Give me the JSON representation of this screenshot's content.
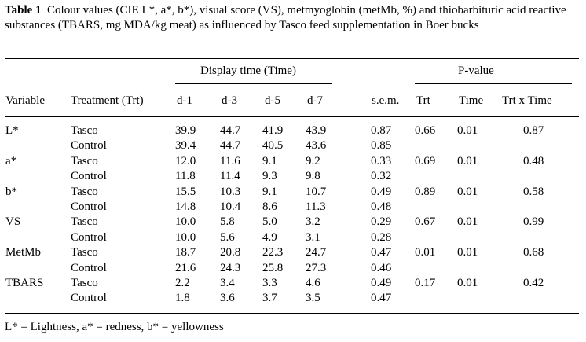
{
  "caption": {
    "label": "Table 1",
    "text": "Colour values (CIE L*, a*, b*), visual score (VS), metmyoglobin (metMb, %) and thiobarbituric acid reactive substances (TBARS, mg MDA/kg meat) as influenced by Tasco feed supplementation in Boer bucks"
  },
  "headers": {
    "display_time": "Display time (Time)",
    "p_value": "P-value",
    "variable": "Variable",
    "treatment": "Treatment (Trt)",
    "days": [
      "d-1",
      "d-3",
      "d-5",
      "d-7"
    ],
    "sem": "s.e.m.",
    "trt": "Trt",
    "time": "Time",
    "trt_x_time": "Trt x Time"
  },
  "rows": [
    {
      "variable": "L*",
      "trt": "Tasco",
      "d1": "39.9",
      "d3": "44.7",
      "d5": "41.9",
      "d7": "43.9",
      "sem": "0.87",
      "p_trt": "0.66",
      "p_time": "0.01",
      "p_int": "0.87"
    },
    {
      "variable": "",
      "trt": "Control",
      "d1": "39.4",
      "d3": "44.7",
      "d5": "40.5",
      "d7": "43.6",
      "sem": "0.85",
      "p_trt": "",
      "p_time": "",
      "p_int": ""
    },
    {
      "variable": "a*",
      "trt": "Tasco",
      "d1": "12.0",
      "d3": "11.6",
      "d5": "9.1",
      "d7": "9.2",
      "sem": "0.33",
      "p_trt": "0.69",
      "p_time": "0.01",
      "p_int": "0.48"
    },
    {
      "variable": "",
      "trt": "Control",
      "d1": "11.8",
      "d3": "11.4",
      "d5": "9.3",
      "d7": "9.8",
      "sem": "0.32",
      "p_trt": "",
      "p_time": "",
      "p_int": ""
    },
    {
      "variable": "b*",
      "trt": "Tasco",
      "d1": "15.5",
      "d3": "10.3",
      "d5": "9.1",
      "d7": "10.7",
      "sem": "0.49",
      "p_trt": "0.89",
      "p_time": "0.01",
      "p_int": "0.58"
    },
    {
      "variable": "",
      "trt": "Control",
      "d1": "14.8",
      "d3": "10.4",
      "d5": "8.6",
      "d7": "11.3",
      "sem": "0.48",
      "p_trt": "",
      "p_time": "",
      "p_int": ""
    },
    {
      "variable": "VS",
      "trt": "Tasco",
      "d1": "10.0",
      "d3": "5.8",
      "d5": "5.0",
      "d7": "3.2",
      "sem": "0.29",
      "p_trt": "0.67",
      "p_time": "0.01",
      "p_int": "0.99"
    },
    {
      "variable": "",
      "trt": "Control",
      "d1": "10.0",
      "d3": "5.6",
      "d5": "4.9",
      "d7": "3.1",
      "sem": "0.28",
      "p_trt": "",
      "p_time": "",
      "p_int": ""
    },
    {
      "variable": "MetMb",
      "trt": "Tasco",
      "d1": "18.7",
      "d3": "20.8",
      "d5": "22.3",
      "d7": "24.7",
      "sem": "0.47",
      "p_trt": "0.01",
      "p_time": "0.01",
      "p_int": "0.68"
    },
    {
      "variable": "",
      "trt": "Control",
      "d1": "21.6",
      "d3": "24.3",
      "d5": "25.8",
      "d7": "27.3",
      "sem": "0.46",
      "p_trt": "",
      "p_time": "",
      "p_int": ""
    },
    {
      "variable": "TBARS",
      "trt": "Tasco",
      "d1": "2.2",
      "d3": "3.4",
      "d5": "3.3",
      "d7": "4.6",
      "sem": "0.49",
      "p_trt": "0.17",
      "p_time": "0.01",
      "p_int": "0.42"
    },
    {
      "variable": "",
      "trt": "Control",
      "d1": "1.8",
      "d3": "3.6",
      "d5": "3.7",
      "d7": "3.5",
      "sem": "0.47",
      "p_trt": "",
      "p_time": "",
      "p_int": ""
    }
  ],
  "footnote": "L* = Lightness, a* = redness, b* = yellowness"
}
